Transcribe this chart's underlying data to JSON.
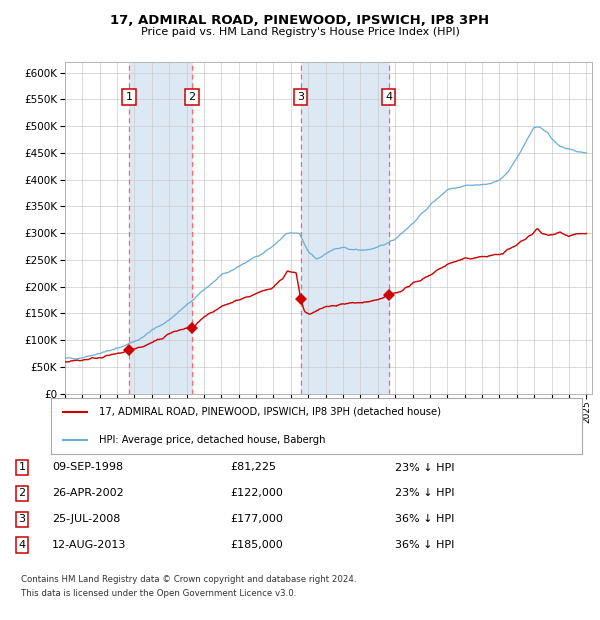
{
  "title": "17, ADMIRAL ROAD, PINEWOOD, IPSWICH, IP8 3PH",
  "subtitle": "Price paid vs. HM Land Registry's House Price Index (HPI)",
  "footer1": "Contains HM Land Registry data © Crown copyright and database right 2024.",
  "footer2": "This data is licensed under the Open Government Licence v3.0.",
  "legend_red": "17, ADMIRAL ROAD, PINEWOOD, IPSWICH, IP8 3PH (detached house)",
  "legend_blue": "HPI: Average price, detached house, Babergh",
  "sales": [
    {
      "num": 1,
      "date_str": "09-SEP-1998",
      "date_x": 1998.69,
      "price": 81225,
      "pct": "23%",
      "dir": "↓"
    },
    {
      "num": 2,
      "date_str": "26-APR-2002",
      "date_x": 2002.32,
      "price": 122000,
      "pct": "23%",
      "dir": "↓"
    },
    {
      "num": 3,
      "date_str": "25-JUL-2008",
      "date_x": 2008.57,
      "price": 177000,
      "pct": "36%",
      "dir": "↓"
    },
    {
      "num": 4,
      "date_str": "12-AUG-2013",
      "date_x": 2013.62,
      "price": 185000,
      "pct": "36%",
      "dir": "↓"
    }
  ],
  "hpi_color": "#6baed6",
  "red_color": "#cc0000",
  "shade_color": "#dce9f5",
  "dashed_color": "#ff6666",
  "ylim": [
    0,
    620000
  ],
  "xlim_start": 1995.0,
  "xlim_end": 2025.3,
  "hpi_anchors": [
    [
      1995.0,
      65000
    ],
    [
      1996.0,
      68000
    ],
    [
      1997.0,
      76000
    ],
    [
      1998.0,
      84000
    ],
    [
      1999.0,
      98000
    ],
    [
      1999.5,
      106000
    ],
    [
      2000.0,
      118000
    ],
    [
      2001.0,
      138000
    ],
    [
      2002.0,
      165000
    ],
    [
      2002.5,
      178000
    ],
    [
      2003.0,
      195000
    ],
    [
      2004.0,
      220000
    ],
    [
      2005.0,
      238000
    ],
    [
      2006.0,
      256000
    ],
    [
      2007.0,
      276000
    ],
    [
      2007.7,
      298000
    ],
    [
      2008.0,
      300000
    ],
    [
      2008.5,
      298000
    ],
    [
      2009.0,
      265000
    ],
    [
      2009.5,
      252000
    ],
    [
      2010.0,
      262000
    ],
    [
      2010.5,
      270000
    ],
    [
      2011.0,
      272000
    ],
    [
      2012.0,
      268000
    ],
    [
      2013.0,
      272000
    ],
    [
      2014.0,
      290000
    ],
    [
      2015.0,
      318000
    ],
    [
      2016.0,
      352000
    ],
    [
      2017.0,
      382000
    ],
    [
      2018.0,
      390000
    ],
    [
      2019.0,
      390000
    ],
    [
      2020.0,
      398000
    ],
    [
      2020.5,
      415000
    ],
    [
      2021.0,
      440000
    ],
    [
      2021.5,
      468000
    ],
    [
      2022.0,
      498000
    ],
    [
      2022.3,
      500000
    ],
    [
      2022.8,
      488000
    ],
    [
      2023.0,
      475000
    ],
    [
      2023.5,
      463000
    ],
    [
      2024.0,
      458000
    ],
    [
      2024.5,
      452000
    ],
    [
      2025.0,
      450000
    ]
  ],
  "red_anchors": [
    [
      1995.0,
      60000
    ],
    [
      1996.0,
      63000
    ],
    [
      1997.0,
      68000
    ],
    [
      1998.0,
      74000
    ],
    [
      1998.69,
      81225
    ],
    [
      1999.0,
      84000
    ],
    [
      1999.5,
      88000
    ],
    [
      2000.0,
      95000
    ],
    [
      2000.5,
      102000
    ],
    [
      2001.0,
      112000
    ],
    [
      2001.5,
      118000
    ],
    [
      2002.0,
      122000
    ],
    [
      2002.32,
      122000
    ],
    [
      2003.0,
      142000
    ],
    [
      2003.5,
      152000
    ],
    [
      2004.0,
      162000
    ],
    [
      2005.0,
      176000
    ],
    [
      2006.0,
      186000
    ],
    [
      2007.0,
      200000
    ],
    [
      2007.5,
      215000
    ],
    [
      2007.8,
      228000
    ],
    [
      2008.3,
      225000
    ],
    [
      2008.57,
      177000
    ],
    [
      2008.8,
      152000
    ],
    [
      2009.0,
      148000
    ],
    [
      2009.5,
      155000
    ],
    [
      2010.0,
      162000
    ],
    [
      2011.0,
      168000
    ],
    [
      2012.0,
      170000
    ],
    [
      2012.5,
      172000
    ],
    [
      2013.0,
      174000
    ],
    [
      2013.62,
      185000
    ],
    [
      2014.0,
      188000
    ],
    [
      2014.5,
      195000
    ],
    [
      2015.0,
      205000
    ],
    [
      2016.0,
      222000
    ],
    [
      2017.0,
      242000
    ],
    [
      2018.0,
      252000
    ],
    [
      2019.0,
      256000
    ],
    [
      2020.0,
      260000
    ],
    [
      2021.0,
      278000
    ],
    [
      2022.0,
      302000
    ],
    [
      2022.2,
      308000
    ],
    [
      2022.5,
      298000
    ],
    [
      2023.0,
      298000
    ],
    [
      2023.5,
      302000
    ],
    [
      2024.0,
      294000
    ],
    [
      2024.5,
      298000
    ],
    [
      2025.0,
      300000
    ]
  ]
}
